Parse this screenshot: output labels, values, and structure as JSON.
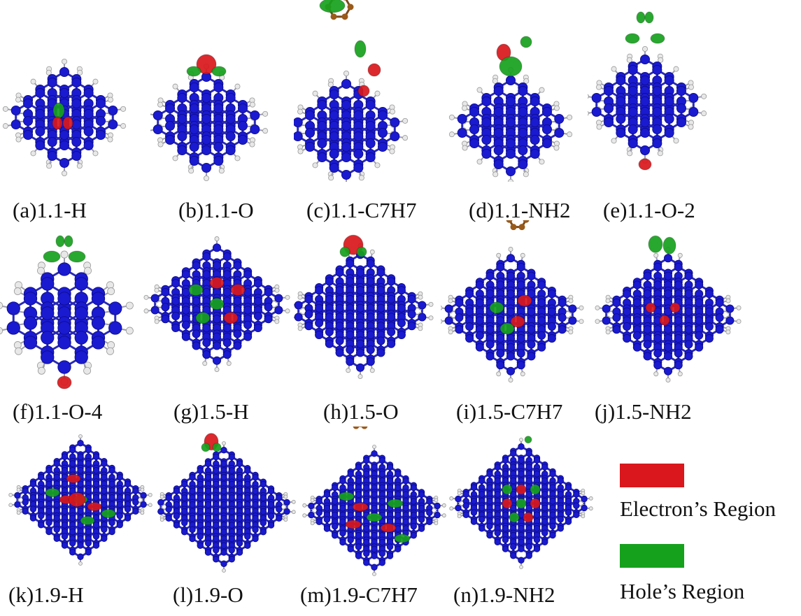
{
  "panels": [
    {
      "caption": "(a)1.1-H"
    },
    {
      "caption": "(b)1.1-O"
    },
    {
      "caption": "(c)1.1-C7H7"
    },
    {
      "caption": "(d)1.1-NH2"
    },
    {
      "caption": "(e)1.1-O-2"
    },
    {
      "caption": "(f)1.1-O-4"
    },
    {
      "caption": "(g)1.5-H"
    },
    {
      "caption": "(h)1.5-O"
    },
    {
      "caption": "(i)1.5-C7H7"
    },
    {
      "caption": "(j)1.5-NH2"
    },
    {
      "caption": "(k)1.9-H"
    },
    {
      "caption": "(l)1.9-O"
    },
    {
      "caption": "(m)1.9-C7H7"
    },
    {
      "caption": "(n)1.9-NH2"
    }
  ],
  "legend": {
    "electron": {
      "label": "Electron’s Region",
      "color": "#d9171c"
    },
    "hole": {
      "label": "Hole’s Region",
      "color": "#16a11d"
    }
  },
  "colors": {
    "bond": "#2a2ab8",
    "carbon_atom": "#1a1ad0",
    "hydrogen_atom": "#e8e8e8",
    "substituent_carbon": "#9a5a1a"
  }
}
